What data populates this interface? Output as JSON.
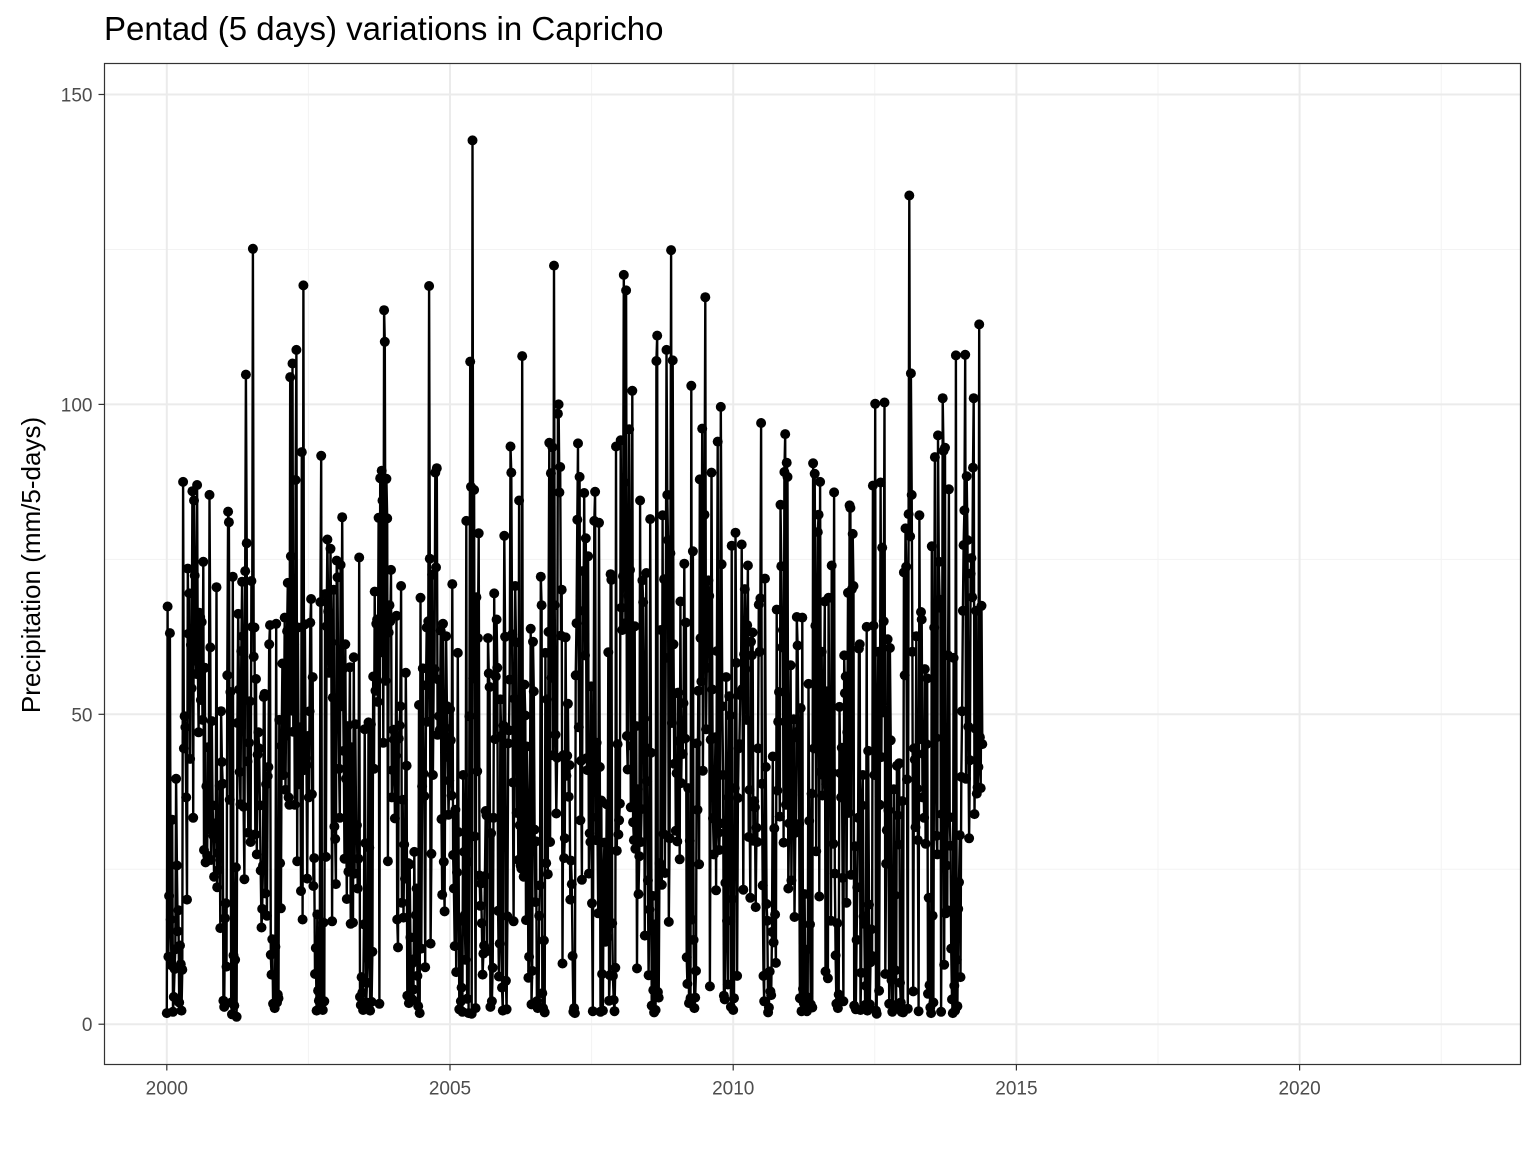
{
  "chart_data": {
    "type": "line",
    "title": "Pentad (5 days) variations in Capricho",
    "xlabel": "",
    "ylabel": "Precipitation (mm/5-days)",
    "xlim": [
      1998.9,
      2023.9
    ],
    "ylim": [
      -6.5,
      155
    ],
    "x_ticks": [
      2000,
      2005,
      2010,
      2015,
      2020
    ],
    "x_tick_labels": [
      "2000",
      "2005",
      "2010",
      "2015",
      "2020"
    ],
    "y_ticks": [
      0,
      50,
      100,
      150
    ],
    "y_tick_labels": [
      "0",
      "50",
      "100",
      "150"
    ],
    "x_minor_ticks": [
      2002.5,
      2007.5,
      2012.5,
      2017.5,
      2022.5
    ],
    "y_minor_ticks": [
      25,
      75,
      125
    ],
    "grid": true,
    "legend": "none",
    "markers": true,
    "series": [
      {
        "name": "Precipitation",
        "points_per_year": 73,
        "x_start": 2000.0,
        "values": [
          1.8,
          67.4,
          10.9,
          20.7,
          63.1,
          16.9,
          9.5,
          33.0,
          2.0,
          4.4,
          8.9,
          12.1,
          39.6,
          25.6,
          15.0,
          18.4,
          3.5,
          12.7,
          9.7,
          2.2,
          8.8,
          87.5,
          44.5,
          49.7,
          47.9,
          36.6,
          20.1,
          73.5,
          63.0,
          69.5,
          42.8,
          61.2,
          54.2,
          86.0,
          33.3,
          84.5,
          72.4,
          62.3,
          56.5,
          87.0,
          58.5,
          47.1,
          66.4,
          65.7,
          52.3,
          64.9,
          49.1,
          74.6,
          28.1,
          57.5,
          26.1,
          38.4,
          27.2,
          44.7,
          31.5,
          85.4,
          60.8,
          26.5,
          48.9,
          35.3,
          30.4,
          23.8,
          32.4,
          30.0,
          70.5,
          22.1,
          27.6,
          24.9,
          38.5,
          15.5,
          50.5,
          42.3,
          38.8,
          3.8,
          2.8,
          17.1,
          19.5,
          9.3,
          56.3,
          82.7,
          81.0,
          36.2,
          53.6,
          3.5,
          1.6,
          72.2,
          11.1,
          3.0,
          10.4,
          25.3,
          1.2,
          48.6,
          66.2,
          54.0,
          40.7,
          35.5,
          60.2,
          71.4,
          62.6,
          35.1,
          23.4,
          73.1,
          104.8,
          77.6,
          42.4,
          30.9,
          45.4,
          52.1,
          29.4,
          71.5,
          64.1,
          125.1,
          59.3,
          64.0,
          30.6,
          55.7,
          27.4,
          43.5,
          47.1,
          44.5,
          35.3,
          24.8,
          15.6,
          18.6,
          25.6,
          52.8,
          53.3,
          21.1,
          38.7,
          17.5,
          40.0,
          41.5,
          61.3,
          64.4,
          11.2,
          8.0,
          13.7,
          3.3,
          7.9,
          2.6,
          12.5,
          64.6,
          3.5,
          4.8,
          4.2,
          49.1,
          26.0,
          18.7,
          44.9,
          58.2,
          40.2,
          46.4,
          65.6,
          37.8,
          54.1,
          63.4,
          71.2,
          36.6,
          35.4,
          104.4,
          75.5,
          50.6,
          106.6,
          47.2,
          61.3,
          35.4,
          87.8,
          108.8,
          26.3,
          64.0,
          38.7,
          42.4,
          47.9,
          21.5,
          92.3,
          16.9,
          119.2,
          41.0,
          64.5,
          42.9,
          41.8,
          23.5,
          46.5,
          36.6,
          50.5,
          64.8,
          68.6,
          37.1,
          56.0,
          22.3,
          26.8,
          8.1,
          12.3,
          2.2,
          17.7,
          5.4,
          3.8,
          2.6,
          68.1,
          91.7,
          3.5,
          2.3,
          16.4,
          3.7,
          69.4,
          27.0,
          64.2,
          78.2,
          66.6,
          56.7,
          59.6,
          76.7,
          61.6,
          16.6,
          52.7,
          70.1,
          31.9,
          29.9,
          22.6,
          74.8,
          72.1,
          52.1,
          41.2,
          33.3,
          74.1,
          51.3,
          81.8,
          57.3,
          44.1,
          26.7,
          61.3,
          39.6,
          20.2,
          48.1,
          24.6,
          40.5,
          57.6,
          16.2,
          44.7,
          29.7,
          16.4,
          59.2,
          24.3,
          48.4,
          31.9,
          32.1,
          21.9,
          26.7,
          75.3,
          4.4,
          3.1,
          7.6,
          5.1,
          2.3,
          16.1,
          47.6,
          29.2,
          3.5,
          6.7,
          10.6,
          48.7,
          28.5,
          2.2,
          48.4,
          3.6,
          11.7,
          56.1,
          41.2,
          69.8,
          53.8,
          64.6,
          65.3,
          52.0,
          81.7,
          3.3,
          88.1,
          60.0,
          89.3,
          84.5,
          45.4,
          115.2,
          110.1,
          55.4,
          88.0,
          81.6,
          26.3,
          63.2,
          67.6,
          65.0,
          73.3,
          36.6,
          41.0,
          47.5,
          45.9,
          33.2,
          43.3,
          65.9,
          16.9,
          12.4,
          46.1,
          48.2,
          51.3,
          70.7,
          19.6,
          36.2,
          17.2,
          29.0,
          23.5,
          56.7,
          41.7,
          4.6,
          26.0,
          3.4,
          25.8,
          14.0,
          4.2,
          9.8,
          3.9,
          5.6,
          27.8,
          10.6,
          17.6,
          21.9,
          7.8,
          2.9,
          51.5,
          1.8,
          68.8,
          12.2,
          38.4,
          57.4,
          40.4,
          36.8,
          9.2,
          54.7,
          64.0,
          48.8,
          65.0,
          119.1,
          75.1,
          13.0,
          27.5,
          72.5,
          40.2,
          56.1,
          57.3,
          89.0,
          73.7,
          89.7,
          46.7,
          55.6,
          49.7,
          47.5,
          63.5,
          33.1,
          20.9,
          64.6,
          26.2,
          18.2,
          47.8,
          62.6,
          51.3,
          43.1,
          33.8,
          39.3,
          50.8,
          45.8,
          36.9,
          71.0,
          27.3,
          21.9,
          12.6,
          34.6,
          8.4,
          24.5,
          59.9,
          31.0,
          2.4,
          16.7,
          3.7,
          5.9,
          2.0,
          40.2,
          27.8,
          17.6,
          10.4,
          81.2,
          4.1,
          26.2,
          1.8,
          49.7,
          106.9,
          86.7,
          1.7,
          142.6,
          55.8,
          86.2,
          30.3,
          2.6,
          68.9,
          40.8,
          62.3,
          79.2,
          24.0,
          19.1,
          22.7,
          16.3,
          8.0,
          11.4,
          12.7,
          23.9,
          34.4,
          33.7,
          11.8,
          62.3,
          56.6,
          54.4,
          2.8,
          30.8,
          3.7,
          9.1,
          33.3,
          69.5,
          46.0,
          56.1,
          65.3,
          57.5,
          18.3,
          7.7,
          13.0,
          52.4,
          46.5,
          5.9,
          2.2,
          48.2,
          78.8,
          62.5,
          7.0,
          2.4,
          17.4,
          45.3,
          47.4,
          55.6,
          93.2,
          89.0,
          62.9,
          39.0,
          16.6,
          52.5,
          70.7,
          61.6,
          34.1,
          44.3,
          26.5,
          84.5,
          32.1,
          25.6,
          25.1,
          107.8,
          30.3,
          23.8,
          54.8,
          49.8,
          16.8,
          44.8,
          37.2,
          7.5,
          10.9,
          36.9,
          63.8,
          3.2,
          8.6,
          61.7,
          53.7,
          31.4,
          19.7,
          29.5,
          3.7,
          2.6,
          2.8,
          17.5,
          22.4,
          72.2,
          67.6,
          5.0,
          2.6,
          13.5,
          1.9,
          59.9,
          26.0,
          52.4,
          24.2,
          63.3,
          93.8,
          29.4,
          88.9,
          55.9,
          93.1,
          43.4,
          122.4,
          67.6,
          46.7,
          34.0,
          43.0,
          98.5,
          100.0,
          85.8,
          89.9,
          62.7,
          70.1,
          9.8,
          43.4,
          26.8,
          30.0,
          62.4,
          40.1,
          43.3,
          51.7,
          36.7,
          41.8,
          20.1,
          26.4,
          22.6,
          11.0,
          2.0,
          2.6,
          1.8,
          56.3,
          64.7,
          81.4,
          93.7,
          47.9,
          88.3,
          32.9,
          42.5,
          23.3,
          73.1,
          66.7,
          85.7,
          59.5,
          78.4,
          42.9,
          41.0,
          75.5,
          24.3,
          30.8,
          29.4,
          54.5,
          19.5,
          2.1,
          43.2,
          81.2,
          85.9,
          29.7,
          45.4,
          33.4,
          17.9,
          80.9,
          41.5,
          2.0,
          36.1,
          8.1,
          2.2,
          24.0,
          29.3,
          13.3,
          19.2,
          35.5,
          14.0,
          60.0,
          3.8,
          7.9,
          72.6,
          71.7,
          16.3,
          7.8,
          3.9,
          2.1,
          9.1,
          93.2,
          28.0,
          45.2,
          30.6,
          32.9,
          35.6,
          94.2,
          67.2,
          63.6,
          72.3,
          120.9,
          87.4,
          64.7,
          118.4,
          46.5,
          41.1,
          69.1,
          96.0,
          73.3,
          35.0,
          44.9,
          102.2,
          32.6,
          29.7,
          64.2,
          28.3,
          48.1,
          9.0,
          37.9,
          21.0,
          27.1,
          84.5,
          29.4,
          34.7,
          71.6,
          68.1,
          49.3,
          14.3,
          44.6,
          72.8,
          39.2,
          23.2,
          7.9,
          18.5,
          81.5,
          43.8,
          3.0,
          20.7,
          5.5,
          1.9,
          16.1,
          2.3,
          107.0,
          111.1,
          5.2,
          4.3,
          26.0,
          25.1,
          63.6,
          22.5,
          82.1,
          30.7,
          71.8,
          24.4,
          59.1,
          108.8,
          85.4,
          78.1,
          16.5,
          30.0,
          76.0,
          124.9,
          48.6,
          107.1,
          61.3,
          42.0,
          53.4,
          31.2,
          40.5,
          29.5,
          53.5,
          45.7,
          26.6,
          68.2,
          38.9,
          48.0,
          43.6,
          51.8,
          74.3,
          46.1,
          64.8,
          10.8,
          6.5,
          38.1,
          3.4,
          29.6,
          4.2,
          103.0,
          16.9,
          76.3,
          13.6,
          2.6,
          4.3,
          8.6,
          45.3,
          34.6,
          53.8,
          25.8,
          87.9,
          62.3,
          55.3,
          96.1,
          40.9,
          61.9,
          82.2,
          117.3,
          47.6,
          57.5,
          69.8,
          71.6,
          69.1,
          6.1,
          45.9,
          89.0,
          54.0,
          33.2,
          27.4,
          33.4,
          46.3,
          21.6,
          60.2,
          94.0,
          30.9,
          28.1,
          32.4,
          99.6,
          74.2,
          51.3,
          40.2,
          4.6,
          4.0,
          22.8,
          56.0,
          16.7,
          6.4,
          36.6,
          52.9,
          49.8,
          2.8,
          77.2,
          20.2,
          2.3,
          4.2,
          38.1,
          79.3,
          58.3,
          7.8,
          36.5,
          44.5,
          45.2,
          53.1,
          53.7,
          77.4,
          54.1,
          21.7,
          59.7,
          70.2,
          57.3,
          49.1,
          64.4,
          74.0,
          30.2,
          37.8,
          20.4,
          61.7,
          59.5,
          63.2,
          29.6,
          36.0,
          35.0,
          18.9,
          31.7,
          29.4,
          44.5,
          67.7,
          60.1,
          68.7,
          97.0,
          38.8,
          22.4,
          7.8,
          3.7,
          71.9,
          41.5,
          19.4,
          16.7,
          1.9,
          2.7,
          8.5,
          5.3,
          4.7,
          14.9,
          43.2,
          13.2,
          31.6,
          17.7,
          9.9,
          66.9,
          37.7,
          48.8,
          53.6,
          33.5,
          83.8,
          73.9,
          60.8,
          63.6,
          29.3,
          89.1,
          95.2,
          35.4,
          90.6,
          88.3,
          21.9,
          32.4,
          44.3,
          57.9,
          23.2,
          37.0,
          46.2,
          49.2,
          17.3,
          30.9,
          31.8,
          65.7,
          61.1,
          47.3,
          32.3,
          4.2,
          51.0,
          2.1,
          65.6,
          5.7,
          3.4,
          21.0,
          4.5,
          12.0,
          2.1,
          4.3,
          54.9,
          32.8,
          16.1,
          3.2,
          37.2,
          2.7,
          90.5,
          44.5,
          88.8,
          64.3,
          27.9,
          56.3,
          79.4,
          82.2,
          20.6,
          87.5,
          40.7,
          60.1,
          36.9,
          40.2,
          53.8,
          68.2,
          8.5,
          38.7,
          53.7,
          7.4,
          68.8,
          44.0,
          50.9,
          16.7,
          74.0,
          40.6,
          29.1,
          85.8,
          24.3,
          11.1,
          3.3,
          16.3,
          2.6,
          4.8,
          51.2,
          40.5,
          36.6,
          44.6,
          23.6,
          3.7,
          59.5,
          53.4,
          56.1,
          19.6,
          47.1,
          69.6,
          34.1,
          83.7,
          83.3,
          24.1,
          70.2,
          79.1,
          70.7,
          3.0,
          28.7,
          2.4,
          13.6,
          22.1,
          33.3,
          60.6,
          61.3,
          2.3,
          8.3,
          35.3,
          40.2,
          17.4,
          16.2,
          3.1,
          6.2,
          64.1,
          2.2,
          44.1,
          19.3,
          3.2,
          10.0,
          15.3,
          11.0,
          86.9,
          64.3,
          40.2,
          100.1,
          2.2,
          1.7,
          47.4,
          60.1,
          5.4,
          35.4,
          87.4,
          43.1,
          76.9,
          50.3,
          65.0,
          100.3,
          8.1,
          25.9,
          31.3,
          62.1,
          34.5,
          3.3,
          60.7,
          45.8,
          7.1,
          2.0,
          3.1,
          37.9,
          20.8,
          8.7,
          2.6,
          41.7,
          33.7,
          29.0,
          42.1,
          6.7,
          3.5,
          2.0,
          36.0,
          1.9,
          72.9,
          56.3,
          80.0,
          73.8,
          39.5,
          2.5,
          82.3,
          133.7,
          78.7,
          105.0,
          85.4,
          60.1,
          5.3,
          44.5,
          42.7,
          31.8,
          62.6,
          38.0,
          29.7,
          2.1,
          82.1,
          46.0,
          66.5,
          65.3,
          36.6,
          43.6,
          33.3,
          57.3,
          29.1,
          45.2,
          55.8,
          4.9,
          20.4,
          6.3,
          2.7,
          1.8,
          77.1,
          17.5,
          3.5,
          64.0,
          91.5,
          46.2,
          30.4,
          27.4,
          95.0,
          74.6,
          68.5,
          67.2,
          2.0,
          33.9,
          101.0,
          92.5,
          9.6,
          93.0,
          17.9,
          25.6,
          18.4,
          59.5,
          86.3,
          33.4,
          28.8,
          12.2,
          4.0,
          1.8,
          59.1,
          6.2,
          2.2,
          107.9,
          10.4,
          2.9,
          18.6,
          22.9,
          30.5,
          7.6,
          39.9,
          50.5,
          66.7,
          77.3,
          82.9,
          108.0,
          39.6,
          88.4,
          78.1,
          48.0,
          30.0,
          42.6,
          72.7,
          75.2,
          68.9,
          89.8,
          101.0,
          33.9,
          47.7,
          66.7,
          37.2,
          38.2,
          41.5,
          112.9,
          46.3,
          38.1,
          67.5,
          45.2
        ]
      }
    ]
  }
}
